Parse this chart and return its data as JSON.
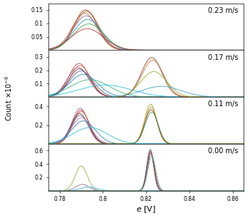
{
  "xlim": [
    0.775,
    0.865
  ],
  "xlabel": "e [V]",
  "ylabel": "Count × 10⁻⁶",
  "panels": [
    {
      "label": "0.23 m/s",
      "ylim": [
        0,
        0.175
      ],
      "yticks": [
        0.05,
        0.1,
        0.15
      ],
      "ytick_labels": [
        "0.05",
        "0.1",
        "0.15"
      ],
      "gaussians": [
        {
          "mu": 0.792,
          "sigma": 0.0055,
          "amp": 0.15,
          "color": "#8B3A0F"
        },
        {
          "mu": 0.7925,
          "sigma": 0.0057,
          "amp": 0.145,
          "color": "#B05020"
        },
        {
          "mu": 0.7915,
          "sigma": 0.0058,
          "amp": 0.138,
          "color": "#C06828"
        },
        {
          "mu": 0.7922,
          "sigma": 0.006,
          "amp": 0.128,
          "color": "#9060A0"
        },
        {
          "mu": 0.793,
          "sigma": 0.0065,
          "amp": 0.115,
          "color": "#2090C0"
        },
        {
          "mu": 0.7935,
          "sigma": 0.007,
          "amp": 0.098,
          "color": "#40A040"
        },
        {
          "mu": 0.7928,
          "sigma": 0.0075,
          "amp": 0.08,
          "color": "#C03030"
        }
      ]
    },
    {
      "label": "0.17 m/s",
      "ylim": [
        0,
        0.35
      ],
      "yticks": [
        0.1,
        0.2,
        0.3
      ],
      "ytick_labels": [
        "0.1",
        "0.2",
        "0.3"
      ],
      "gaussians": [
        {
          "mu": 0.789,
          "sigma": 0.0048,
          "amp": 0.25,
          "color": "#C03030"
        },
        {
          "mu": 0.7895,
          "sigma": 0.0048,
          "amp": 0.235,
          "color": "#D06040"
        },
        {
          "mu": 0.7885,
          "sigma": 0.005,
          "amp": 0.22,
          "color": "#9060A0"
        },
        {
          "mu": 0.7892,
          "sigma": 0.005,
          "amp": 0.21,
          "color": "#8B3A0F"
        },
        {
          "mu": 0.79,
          "sigma": 0.0055,
          "amp": 0.195,
          "color": "#4060B0"
        },
        {
          "mu": 0.791,
          "sigma": 0.0065,
          "amp": 0.17,
          "color": "#2080C0"
        },
        {
          "mu": 0.794,
          "sigma": 0.009,
          "amp": 0.13,
          "color": "#30B070"
        },
        {
          "mu": 0.801,
          "sigma": 0.012,
          "amp": 0.09,
          "color": "#20C0E0"
        },
        {
          "mu": 0.8225,
          "sigma": 0.0048,
          "amp": 0.295,
          "color": "#8B3A0F"
        },
        {
          "mu": 0.823,
          "sigma": 0.005,
          "amp": 0.275,
          "color": "#C07030"
        },
        {
          "mu": 0.8235,
          "sigma": 0.006,
          "amp": 0.19,
          "color": "#90B030"
        },
        {
          "mu": 0.827,
          "sigma": 0.009,
          "amp": 0.08,
          "color": "#30A0D0"
        }
      ]
    },
    {
      "label": "0.11 m/s",
      "ylim": [
        0,
        0.5
      ],
      "yticks": [
        0.2,
        0.4
      ],
      "ytick_labels": [
        "0.2",
        "0.4"
      ],
      "gaussians": [
        {
          "mu": 0.7895,
          "sigma": 0.0038,
          "amp": 0.38,
          "color": "#9060A0"
        },
        {
          "mu": 0.7898,
          "sigma": 0.0038,
          "amp": 0.36,
          "color": "#C03030"
        },
        {
          "mu": 0.79,
          "sigma": 0.0039,
          "amp": 0.345,
          "color": "#D06040"
        },
        {
          "mu": 0.7892,
          "sigma": 0.004,
          "amp": 0.325,
          "color": "#8B3A0F"
        },
        {
          "mu": 0.7895,
          "sigma": 0.0042,
          "amp": 0.305,
          "color": "#4060B0"
        },
        {
          "mu": 0.79,
          "sigma": 0.0045,
          "amp": 0.28,
          "color": "#C070B0"
        },
        {
          "mu": 0.791,
          "sigma": 0.0055,
          "amp": 0.245,
          "color": "#2080C0"
        },
        {
          "mu": 0.794,
          "sigma": 0.008,
          "amp": 0.175,
          "color": "#20C0D0"
        },
        {
          "mu": 0.822,
          "sigma": 0.0028,
          "amp": 0.425,
          "color": "#A0A020"
        },
        {
          "mu": 0.8222,
          "sigma": 0.0028,
          "amp": 0.395,
          "color": "#C09030"
        },
        {
          "mu": 0.8222,
          "sigma": 0.0029,
          "amp": 0.365,
          "color": "#8B3A0F"
        },
        {
          "mu": 0.8225,
          "sigma": 0.003,
          "amp": 0.34,
          "color": "#40A060"
        }
      ]
    },
    {
      "label": "0.00 m/s",
      "ylim": [
        0,
        0.7
      ],
      "yticks": [
        0.2,
        0.4,
        0.6
      ],
      "ytick_labels": [
        "0.2",
        "0.4",
        "0.6"
      ],
      "gaussians": [
        {
          "mu": 0.79,
          "sigma": 0.0028,
          "amp": 0.37,
          "color": "#90B030"
        },
        {
          "mu": 0.7905,
          "sigma": 0.003,
          "amp": 0.095,
          "color": "#9060A0"
        },
        {
          "mu": 0.7935,
          "sigma": 0.0038,
          "amp": 0.055,
          "color": "#30B0D0"
        },
        {
          "mu": 0.8218,
          "sigma": 0.0016,
          "amp": 0.615,
          "color": "#4060B0"
        },
        {
          "mu": 0.822,
          "sigma": 0.0016,
          "amp": 0.595,
          "color": "#C03030"
        },
        {
          "mu": 0.822,
          "sigma": 0.0016,
          "amp": 0.575,
          "color": "#8B3A0F"
        },
        {
          "mu": 0.8222,
          "sigma": 0.0017,
          "amp": 0.55,
          "color": "#9060A0"
        },
        {
          "mu": 0.8225,
          "sigma": 0.0018,
          "amp": 0.52,
          "color": "#40A060"
        }
      ]
    }
  ],
  "background_color": "#ffffff",
  "text_color": "black"
}
